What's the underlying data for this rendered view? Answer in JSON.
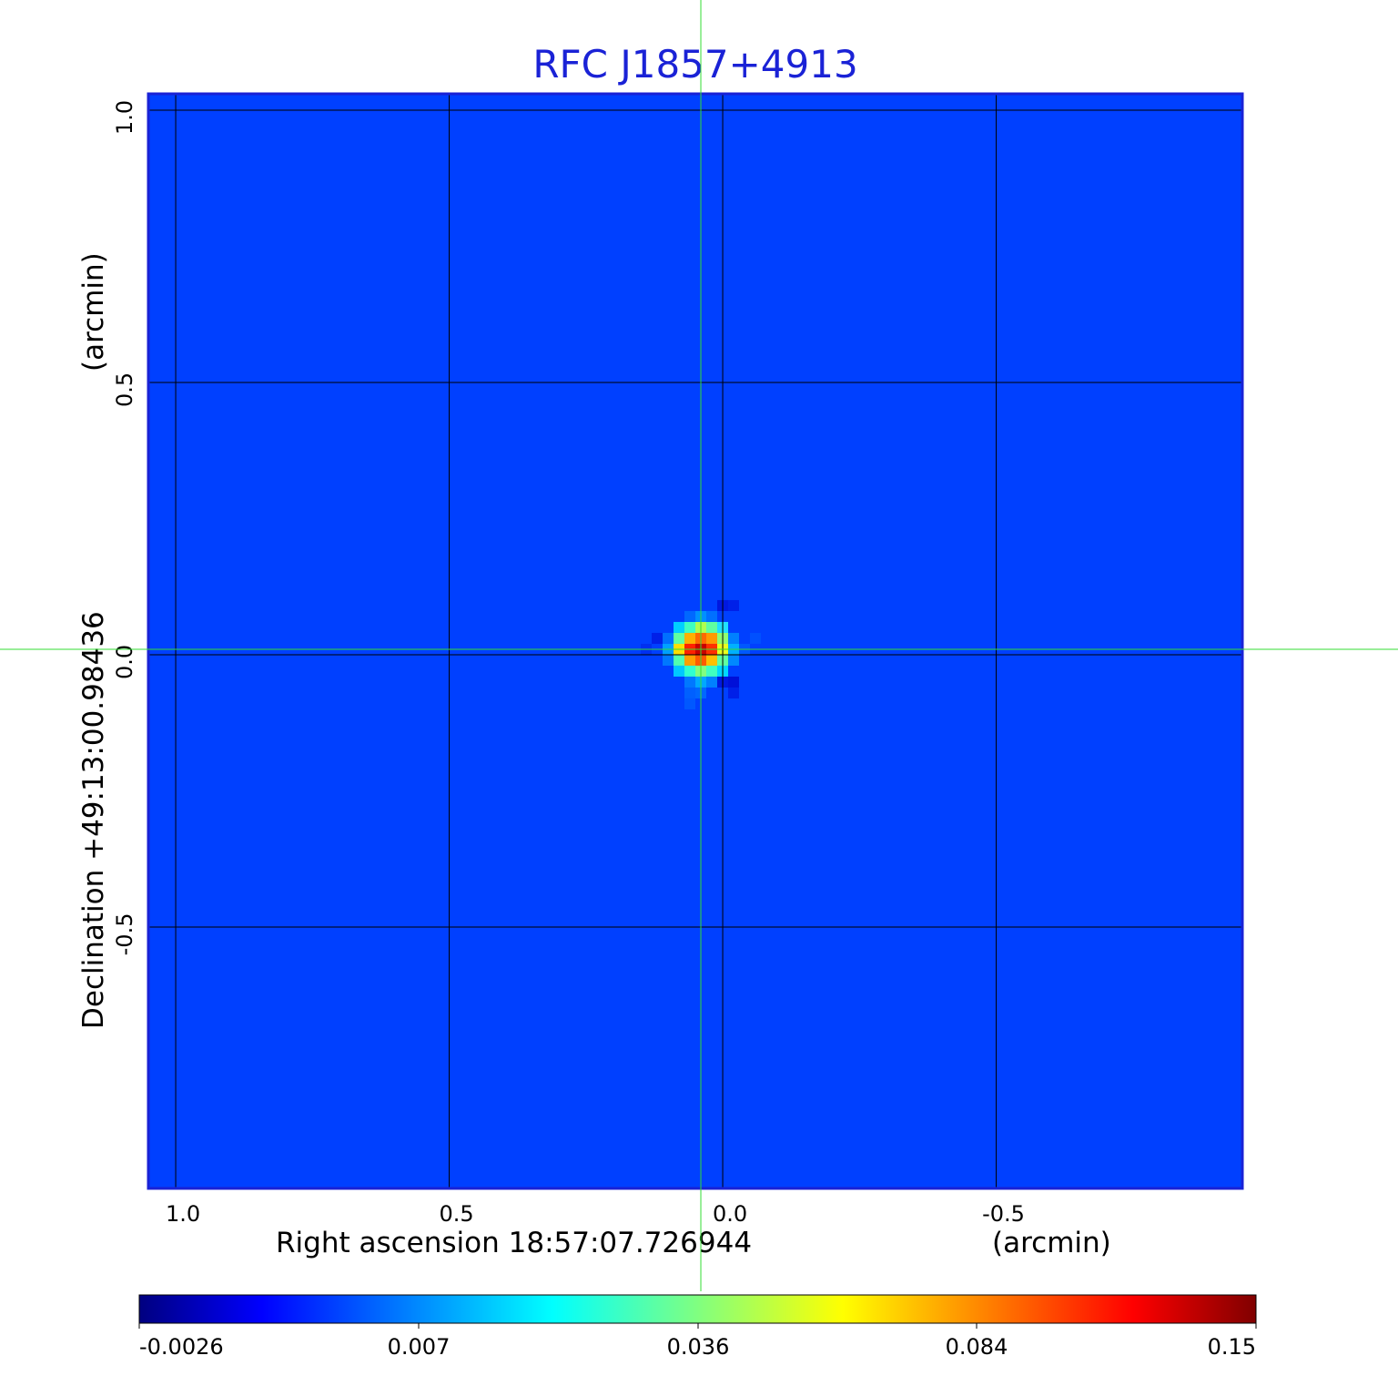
{
  "chart_data": {
    "type": "heatmap",
    "title": "RFC J1857+4913",
    "xlabel": "Right ascension  18:57:07.726944",
    "xlabel_unit": "(arcmin)",
    "ylabel": "Declination  +49:13:00.98436",
    "ylabel_unit": "(arcmin)",
    "x_ticks": [
      "1.0",
      "0.5",
      "0.0",
      "-0.5"
    ],
    "x_tick_values": [
      1.0,
      0.5,
      0.0,
      -0.5
    ],
    "y_ticks": [
      "1.0",
      "0.5",
      "0.0",
      "-0.5"
    ],
    "y_tick_values": [
      1.0,
      0.5,
      0.0,
      -0.5
    ],
    "xlim": [
      1.05,
      -0.95
    ],
    "ylim": [
      -0.98,
      1.03
    ],
    "grid": true,
    "crosshair": {
      "x": 0.04,
      "y": 0.01,
      "color": "#33dd33"
    },
    "source": {
      "x": 0.04,
      "y": 0.01,
      "peak": 0.15
    },
    "background_level": -0.0003,
    "colorbar": {
      "ticks": [
        "-0.0026",
        "0.007",
        "0.036",
        "0.084",
        "0.15"
      ],
      "tick_values": [
        -0.0026,
        0.007,
        0.036,
        0.084,
        0.15
      ],
      "colormap": "jet",
      "stops": [
        "#000080",
        "#0000ff",
        "#0080ff",
        "#00ffff",
        "#80ff80",
        "#ffff00",
        "#ff8000",
        "#ff0000",
        "#800000"
      ]
    }
  }
}
